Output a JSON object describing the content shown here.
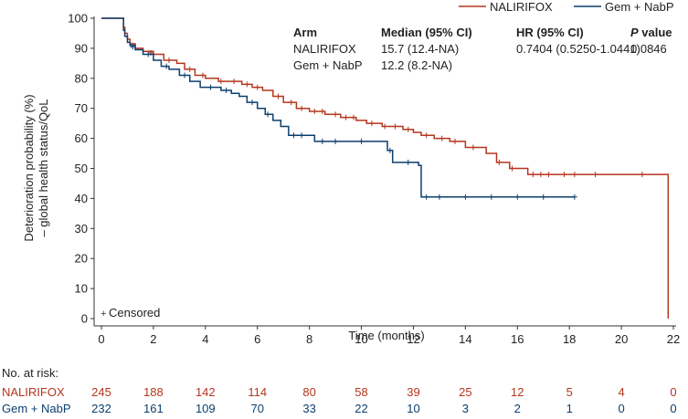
{
  "chart_data": {
    "type": "line",
    "subtype": "kaplan-meier",
    "xlabel": "Time (months)",
    "ylabel_lines": [
      "Deterioration probability (%)",
      "– global health status/QoL"
    ],
    "xlim": [
      0,
      22
    ],
    "ylim": [
      0,
      100
    ],
    "xticks": [
      0,
      2,
      4,
      6,
      8,
      10,
      12,
      14,
      16,
      18,
      20,
      22
    ],
    "yticks": [
      0,
      10,
      20,
      30,
      40,
      50,
      60,
      70,
      80,
      90,
      100
    ],
    "legend": {
      "position": "top-right"
    },
    "censored_label": "Censored",
    "stats_table": {
      "headers": [
        "Arm",
        "Median (95% CI)",
        "HR (95% CI)",
        "P value"
      ],
      "rows": [
        [
          "NALIRIFOX",
          "15.7 (12.4-NA)",
          "0.7404 (0.5250-1.0441)",
          "0.0846"
        ],
        [
          "Gem + NabP",
          "12.2 (8.2-NA)",
          "",
          ""
        ]
      ]
    },
    "series": [
      {
        "name": "NALIRIFOX",
        "color": "#b5361e",
        "steps": [
          [
            0,
            100
          ],
          [
            0.8,
            100
          ],
          [
            0.85,
            97
          ],
          [
            0.9,
            95
          ],
          [
            1.0,
            93
          ],
          [
            1.1,
            91.5
          ],
          [
            1.3,
            90
          ],
          [
            1.6,
            89
          ],
          [
            2.0,
            88
          ],
          [
            2.4,
            86
          ],
          [
            2.9,
            85
          ],
          [
            3.2,
            83
          ],
          [
            3.6,
            81
          ],
          [
            4.0,
            80
          ],
          [
            4.5,
            79
          ],
          [
            5.0,
            79
          ],
          [
            5.4,
            78
          ],
          [
            5.8,
            77
          ],
          [
            6.2,
            76
          ],
          [
            6.6,
            74
          ],
          [
            7.0,
            72
          ],
          [
            7.5,
            70
          ],
          [
            8.0,
            69
          ],
          [
            8.6,
            68
          ],
          [
            9.2,
            67
          ],
          [
            9.8,
            66
          ],
          [
            10.2,
            65
          ],
          [
            10.8,
            64
          ],
          [
            11.6,
            63
          ],
          [
            12.0,
            62
          ],
          [
            12.3,
            61
          ],
          [
            12.8,
            60
          ],
          [
            13.4,
            59
          ],
          [
            14.0,
            57
          ],
          [
            14.8,
            55
          ],
          [
            15.2,
            52
          ],
          [
            15.7,
            50
          ],
          [
            16.4,
            48
          ],
          [
            21.8,
            48
          ],
          [
            21.8,
            0
          ]
        ],
        "censored": [
          [
            1.2,
            91
          ],
          [
            1.9,
            88.5
          ],
          [
            2.6,
            86
          ],
          [
            3.4,
            83
          ],
          [
            3.9,
            81
          ],
          [
            4.6,
            79
          ],
          [
            5.1,
            79
          ],
          [
            5.6,
            78
          ],
          [
            6.0,
            77
          ],
          [
            6.8,
            74
          ],
          [
            7.3,
            72
          ],
          [
            7.7,
            70
          ],
          [
            8.2,
            69
          ],
          [
            8.5,
            69
          ],
          [
            9.0,
            68
          ],
          [
            9.4,
            67
          ],
          [
            9.7,
            67
          ],
          [
            10.4,
            65
          ],
          [
            10.9,
            64
          ],
          [
            11.3,
            64
          ],
          [
            11.8,
            63
          ],
          [
            12.5,
            61
          ],
          [
            13.1,
            60
          ],
          [
            13.6,
            59
          ],
          [
            14.3,
            57
          ],
          [
            15.3,
            52
          ],
          [
            15.8,
            50
          ],
          [
            16.6,
            48
          ],
          [
            16.9,
            48
          ],
          [
            17.2,
            48
          ],
          [
            17.8,
            48
          ],
          [
            18.2,
            48
          ],
          [
            19.0,
            48
          ],
          [
            20.8,
            48
          ]
        ]
      },
      {
        "name": "Gem + NabP",
        "color": "#0c3f6e",
        "steps": [
          [
            0,
            100
          ],
          [
            0.8,
            100
          ],
          [
            0.85,
            96
          ],
          [
            0.9,
            94
          ],
          [
            1.0,
            92
          ],
          [
            1.1,
            91
          ],
          [
            1.3,
            89.5
          ],
          [
            1.6,
            88
          ],
          [
            2.0,
            86
          ],
          [
            2.3,
            84
          ],
          [
            2.6,
            83
          ],
          [
            3.0,
            81
          ],
          [
            3.4,
            79
          ],
          [
            3.8,
            77
          ],
          [
            4.6,
            76
          ],
          [
            5.0,
            75
          ],
          [
            5.3,
            74
          ],
          [
            5.6,
            72
          ],
          [
            6.0,
            70
          ],
          [
            6.3,
            68
          ],
          [
            6.6,
            66
          ],
          [
            6.9,
            64
          ],
          [
            7.2,
            61
          ],
          [
            8.0,
            61
          ],
          [
            8.2,
            59
          ],
          [
            11.0,
            56
          ],
          [
            11.2,
            52
          ],
          [
            12.2,
            51
          ],
          [
            12.3,
            40.5
          ],
          [
            18.2,
            40.5
          ]
        ],
        "censored": [
          [
            1.2,
            90.5
          ],
          [
            1.8,
            88
          ],
          [
            2.5,
            84
          ],
          [
            3.2,
            81
          ],
          [
            4.2,
            77
          ],
          [
            4.8,
            76
          ],
          [
            5.8,
            72
          ],
          [
            6.4,
            68
          ],
          [
            7.4,
            61
          ],
          [
            7.7,
            61
          ],
          [
            8.5,
            59
          ],
          [
            9.0,
            59
          ],
          [
            10.0,
            59
          ],
          [
            11.1,
            56
          ],
          [
            11.8,
            52
          ],
          [
            12.5,
            40.5
          ],
          [
            13.0,
            40.5
          ],
          [
            14.0,
            40.5
          ],
          [
            15.0,
            40.5
          ],
          [
            16.0,
            40.5
          ],
          [
            17.0,
            40.5
          ],
          [
            18.2,
            40.5
          ]
        ]
      }
    ],
    "at_risk": {
      "label": "No. at risk:",
      "times": [
        0,
        2,
        4,
        6,
        8,
        10,
        12,
        14,
        16,
        18,
        20,
        22
      ],
      "rows": [
        {
          "name": "NALIRIFOX",
          "color": "#b5361e",
          "values": [
            "245",
            "188",
            "142",
            "114",
            "80",
            "58",
            "39",
            "25",
            "12",
            "5",
            "4",
            "0"
          ]
        },
        {
          "name": "Gem + NabP",
          "color": "#0c3f6e",
          "values": [
            "232",
            "161",
            "109",
            "70",
            "33",
            "22",
            "10",
            "3",
            "2",
            "1",
            "0",
            "0"
          ]
        }
      ]
    }
  }
}
